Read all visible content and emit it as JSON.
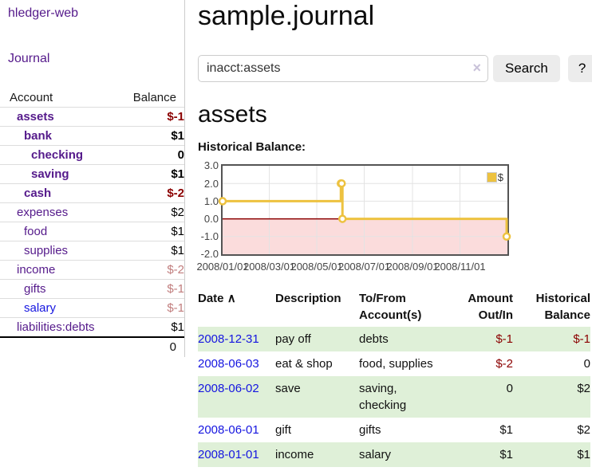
{
  "app": {
    "brand": "hledger-web",
    "nav_journal": "Journal"
  },
  "header": {
    "title": "sample.journal"
  },
  "search": {
    "value": "inacct:assets",
    "clear_icon": "×",
    "button_label": "Search",
    "help_label": "?"
  },
  "account_page": {
    "heading": "assets",
    "chart_label": "Historical Balance:"
  },
  "colors": {
    "link_purple": "#551A8B",
    "link_blue": "#1515e0",
    "neg_strong": "#8b0000",
    "neg_soft": "#c17d7d",
    "row_green": "#dff0d8",
    "series_gold": "#edc240"
  },
  "sidebar": {
    "header": {
      "account": "Account",
      "balance": "Balance"
    },
    "accounts": [
      {
        "name": "assets",
        "depth": 1,
        "bold": true,
        "balance": "$-1",
        "tone": "neg-strong",
        "blue": false
      },
      {
        "name": "bank",
        "depth": 2,
        "bold": true,
        "balance": "$1",
        "tone": "",
        "blue": false
      },
      {
        "name": "checking",
        "depth": 3,
        "bold": true,
        "balance": "0",
        "tone": "",
        "blue": false
      },
      {
        "name": "saving",
        "depth": 3,
        "bold": true,
        "balance": "$1",
        "tone": "",
        "blue": false
      },
      {
        "name": "cash",
        "depth": 2,
        "bold": true,
        "balance": "$-2",
        "tone": "neg-strong",
        "blue": false
      },
      {
        "name": "expenses",
        "depth": 1,
        "bold": false,
        "balance": "$2",
        "tone": "",
        "blue": false
      },
      {
        "name": "food",
        "depth": 2,
        "bold": false,
        "balance": "$1",
        "tone": "",
        "blue": false
      },
      {
        "name": "supplies",
        "depth": 2,
        "bold": false,
        "balance": "$1",
        "tone": "",
        "blue": false
      },
      {
        "name": "income",
        "depth": 1,
        "bold": false,
        "balance": "$-2",
        "tone": "neg-soft",
        "blue": false
      },
      {
        "name": "gifts",
        "depth": 2,
        "bold": false,
        "balance": "$-1",
        "tone": "neg-soft",
        "blue": false
      },
      {
        "name": "salary",
        "depth": 2,
        "bold": false,
        "balance": "$-1",
        "tone": "neg-soft",
        "blue": true
      },
      {
        "name": "liabilities:debts",
        "depth": 1,
        "bold": false,
        "balance": "$1",
        "tone": "",
        "blue": false
      }
    ],
    "total": "0"
  },
  "chart_data": {
    "type": "line",
    "title": "Historical Balance:",
    "legend_label": "$",
    "legend_position": "top-right",
    "grid": true,
    "ylim": [
      -2,
      3
    ],
    "yticks": [
      "3.0",
      "2.0",
      "1.0",
      "0.0",
      "-1.0",
      "-2.0"
    ],
    "ytick_values": [
      3,
      2,
      1,
      0,
      -1,
      -2
    ],
    "xticks": [
      "2008/01/01",
      "2008/03/01",
      "2008/05/01",
      "2008/07/01",
      "2008/09/01",
      "2008/11/01"
    ],
    "x_start": "2008-01-01",
    "x_days_span": 366,
    "series": [
      {
        "name": "$",
        "color": "#edc240",
        "points": [
          [
            "2008-01-01",
            1
          ],
          [
            "2008-06-01",
            2
          ],
          [
            "2008-06-02",
            2
          ],
          [
            "2008-06-03",
            0
          ],
          [
            "2008-12-31",
            -1
          ]
        ]
      }
    ],
    "negative_region_fill": "#fbdcdc",
    "zero_line_color": "#8b0000",
    "grid_color": "#e3e3e3",
    "border_color": "#545454"
  },
  "register": {
    "columns": [
      "Date",
      "Description",
      "To/From Account(s)",
      "Amount Out/In",
      "Historical Balance"
    ],
    "sort_asc_icon": "∧",
    "rows": [
      {
        "date": "2008-12-31",
        "description": "pay off",
        "accounts": "debts",
        "amount": "$-1",
        "amount_neg": true,
        "balance": "$-1",
        "balance_neg": true
      },
      {
        "date": "2008-06-03",
        "description": "eat & shop",
        "accounts": "food, supplies",
        "amount": "$-2",
        "amount_neg": true,
        "balance": "0",
        "balance_neg": false
      },
      {
        "date": "2008-06-02",
        "description": "save",
        "accounts": "saving, checking",
        "amount": "0",
        "amount_neg": false,
        "balance": "$2",
        "balance_neg": false
      },
      {
        "date": "2008-06-01",
        "description": "gift",
        "accounts": "gifts",
        "amount": "$1",
        "amount_neg": false,
        "balance": "$2",
        "balance_neg": false
      },
      {
        "date": "2008-01-01",
        "description": "income",
        "accounts": "salary",
        "amount": "$1",
        "amount_neg": false,
        "balance": "$1",
        "balance_neg": false
      }
    ]
  }
}
